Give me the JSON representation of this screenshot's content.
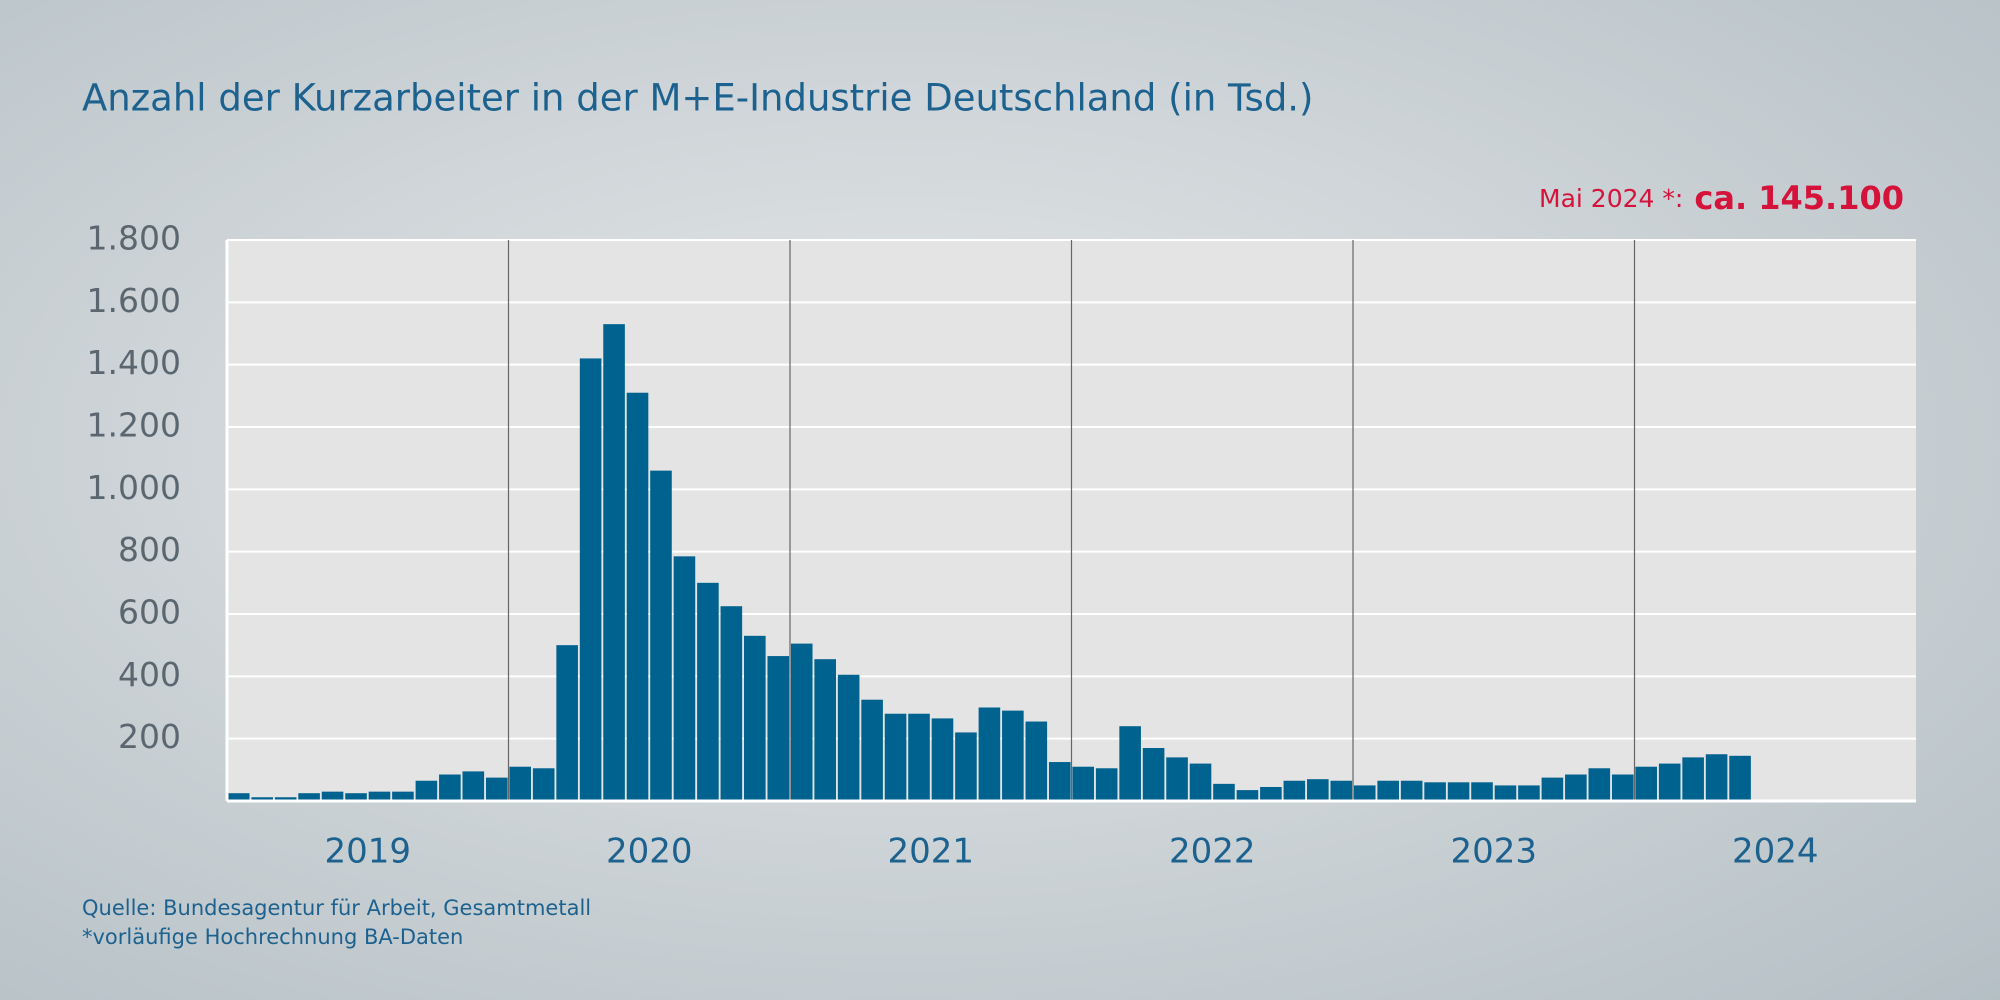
{
  "chart_data": {
    "type": "bar",
    "title": "Anzahl der Kurzarbeiter in der M+E-Industrie Deutschland (in Tsd.)",
    "annotation": {
      "label": "Mai 2024 *:",
      "value_text": "ca. 145.100"
    },
    "color": "#00628f",
    "months_per_year": 12,
    "years": [
      {
        "label": "2019",
        "values": [
          25,
          12,
          12,
          25,
          30,
          25,
          30,
          30,
          65,
          85,
          95,
          75
        ]
      },
      {
        "label": "2020",
        "values": [
          110,
          105,
          500,
          1420,
          1530,
          1310,
          1060,
          785,
          700,
          625,
          530,
          465
        ]
      },
      {
        "label": "2021",
        "values": [
          505,
          455,
          405,
          325,
          280,
          280,
          265,
          220,
          300,
          290,
          255,
          125
        ]
      },
      {
        "label": "2022",
        "values": [
          110,
          105,
          240,
          170,
          140,
          120,
          55,
          35,
          45,
          65,
          70,
          65
        ]
      },
      {
        "label": "2023",
        "values": [
          50,
          65,
          65,
          60,
          60,
          60,
          50,
          50,
          75,
          85,
          105,
          85
        ]
      },
      {
        "label": "2024",
        "values": [
          110,
          120,
          140,
          150,
          145
        ]
      }
    ],
    "ylim": [
      0,
      1800
    ],
    "yticks": [
      200,
      400,
      600,
      800,
      {
        "value": 1000,
        "label": "1.000"
      },
      {
        "value": 1200,
        "label": "1.200"
      },
      {
        "value": 1400,
        "label": "1.400"
      },
      {
        "value": 1600,
        "label": "1.600"
      },
      {
        "value": 1800,
        "label": "1.800"
      }
    ],
    "grid": true,
    "source": "Quelle: Bundesagentur für Arbeit, Gesamtmetall",
    "footnote": "*vorläufige Hochrechnung BA-Daten"
  }
}
